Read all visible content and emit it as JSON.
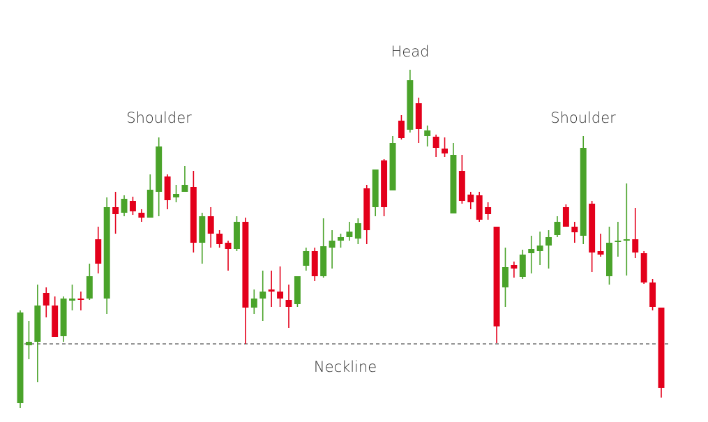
{
  "chart_data": {
    "type": "candlestick",
    "ylim": [
      0,
      600
    ],
    "up_color": "#4aa32a",
    "down_color": "#e3001b",
    "annotations": [
      "Shoulder",
      "Head",
      "Shoulder"
    ],
    "neckline": {
      "label": "Neckline",
      "value": 107
    },
    "open": [
      22,
      105,
      110,
      180,
      162,
      118,
      169,
      172,
      172,
      257,
      172,
      303,
      295,
      312,
      295,
      288,
      325,
      347,
      317,
      325,
      332,
      252,
      290,
      265,
      252,
      243,
      282,
      159,
      172,
      185,
      182,
      170,
      164,
      219,
      240,
      204,
      245,
      255,
      260,
      258,
      330,
      303,
      370,
      327,
      427,
      414,
      452,
      405,
      404,
      387,
      294,
      355,
      321,
      320,
      303,
      275,
      188,
      220,
      203,
      237,
      240,
      248,
      263,
      303,
      275,
      262,
      308,
      240,
      204,
      253,
      255,
      257,
      237,
      195,
      159
    ],
    "high": [
      155,
      140,
      192,
      188,
      175,
      175,
      192,
      182,
      222,
      275,
      317,
      325,
      320,
      318,
      300,
      350,
      403,
      350,
      335,
      362,
      355,
      295,
      303,
      270,
      255,
      290,
      288,
      185,
      212,
      212,
      218,
      192,
      204,
      245,
      245,
      287,
      270,
      265,
      282,
      287,
      335,
      357,
      372,
      405,
      435,
      500,
      460,
      420,
      407,
      403,
      395,
      378,
      325,
      325,
      310,
      275,
      245,
      225,
      242,
      262,
      268,
      270,
      290,
      307,
      282,
      405,
      312,
      265,
      275,
      282,
      337,
      302,
      240,
      200,
      159
    ],
    "low": [
      15,
      85,
      52,
      145,
      117,
      110,
      155,
      155,
      170,
      208,
      150,
      265,
      290,
      292,
      282,
      288,
      290,
      300,
      310,
      325,
      238,
      222,
      245,
      245,
      212,
      240,
      107,
      150,
      140,
      160,
      160,
      130,
      160,
      212,
      197,
      202,
      215,
      245,
      255,
      250,
      250,
      290,
      290,
      327,
      400,
      410,
      395,
      390,
      375,
      375,
      294,
      308,
      300,
      282,
      285,
      108,
      160,
      202,
      200,
      208,
      220,
      215,
      260,
      275,
      252,
      250,
      210,
      232,
      192,
      232,
      205,
      230,
      193,
      155,
      30
    ],
    "close": [
      152,
      110,
      162,
      162,
      117,
      172,
      172,
      170,
      204,
      222,
      303,
      293,
      315,
      297,
      288,
      328,
      390,
      313,
      322,
      335,
      252,
      290,
      265,
      250,
      243,
      282,
      159,
      172,
      182,
      182,
      172,
      160,
      204,
      240,
      204,
      247,
      255,
      260,
      268,
      280,
      270,
      357,
      303,
      395,
      402,
      485,
      415,
      413,
      388,
      380,
      378,
      312,
      310,
      285,
      293,
      132,
      217,
      215,
      235,
      243,
      248,
      260,
      282,
      275,
      267,
      388,
      238,
      235,
      252,
      255,
      257,
      238,
      195,
      160,
      44
    ]
  }
}
